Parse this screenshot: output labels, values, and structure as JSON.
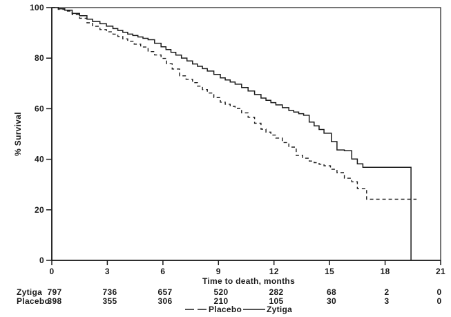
{
  "chart_data": {
    "type": "line",
    "subtype": "kaplan-meier-step",
    "title": "",
    "xlabel": "Time to death, months",
    "ylabel": "% Survival",
    "xlim": [
      0,
      21
    ],
    "ylim": [
      0,
      100
    ],
    "x_ticks": [
      "0",
      "3",
      "6",
      "9",
      "12",
      "15",
      "18",
      "21"
    ],
    "y_ticks": [
      "0",
      "20",
      "40",
      "60",
      "80",
      "100"
    ],
    "grid": false,
    "frame": "box",
    "legend_position": "bottom-center",
    "legend": [
      {
        "label": "Placebo",
        "style": "dashed"
      },
      {
        "label": "Zytiga",
        "style": "solid"
      }
    ],
    "series": [
      {
        "name": "Placebo",
        "style": "dashed",
        "color": "#1a1a1a",
        "points": [
          [
            0,
            100
          ],
          [
            0.7,
            98.6
          ],
          [
            1.1,
            97.2
          ],
          [
            1.5,
            95.8
          ],
          [
            1.9,
            94.0
          ],
          [
            2.2,
            92.6
          ],
          [
            2.6,
            91.3
          ],
          [
            3.3,
            89.5
          ],
          [
            4.1,
            86.7
          ],
          [
            4.8,
            84.4
          ],
          [
            5.2,
            82.6
          ],
          [
            5.9,
            79.9
          ],
          [
            6.5,
            75.7
          ],
          [
            6.9,
            73.0
          ],
          [
            7.6,
            70.3
          ],
          [
            8.4,
            66.2
          ],
          [
            9.1,
            62.6
          ],
          [
            9.9,
            60.1
          ],
          [
            10.6,
            56.6
          ],
          [
            11.3,
            51.9
          ],
          [
            12.1,
            48.4
          ],
          [
            12.8,
            44.8
          ],
          [
            13.2,
            41.5
          ],
          [
            13.9,
            39.3
          ],
          [
            14.7,
            37.4
          ],
          [
            15.4,
            34.7
          ],
          [
            15.8,
            32.5
          ],
          [
            16.2,
            31.1
          ],
          [
            16.5,
            28.4
          ],
          [
            17.0,
            24.2
          ],
          [
            19.7,
            24.2
          ]
        ]
      },
      {
        "name": "Zytiga",
        "style": "solid",
        "color": "#1a1a1a",
        "points": [
          [
            0,
            100
          ],
          [
            0.7,
            99.0
          ],
          [
            1.1,
            97.7
          ],
          [
            1.5,
            96.8
          ],
          [
            1.9,
            95.4
          ],
          [
            2.2,
            94.5
          ],
          [
            2.6,
            93.6
          ],
          [
            3.3,
            91.7
          ],
          [
            4.1,
            89.5
          ],
          [
            5.2,
            87.3
          ],
          [
            5.9,
            84.5
          ],
          [
            6.7,
            81.2
          ],
          [
            7.6,
            77.7
          ],
          [
            8.4,
            74.9
          ],
          [
            9.1,
            72.2
          ],
          [
            9.9,
            69.7
          ],
          [
            10.6,
            67.0
          ],
          [
            11.3,
            64.2
          ],
          [
            12.1,
            61.5
          ],
          [
            12.8,
            59.3
          ],
          [
            13.6,
            57.4
          ],
          [
            13.9,
            54.7
          ],
          [
            14.7,
            50.3
          ],
          [
            15.1,
            47.0
          ],
          [
            15.4,
            43.7
          ],
          [
            15.8,
            43.4
          ],
          [
            16.2,
            40.1
          ],
          [
            16.5,
            38.2
          ],
          [
            16.8,
            36.8
          ],
          [
            19.4,
            36.8
          ],
          [
            19.4,
            0
          ]
        ]
      }
    ]
  },
  "risk_table": {
    "rows": [
      {
        "label": "Zytiga",
        "counts": [
          "797",
          "736",
          "657",
          "520",
          "282",
          "68",
          "2",
          "0"
        ]
      },
      {
        "label": "Placebo",
        "counts": [
          "398",
          "355",
          "306",
          "210",
          "105",
          "30",
          "3",
          "0"
        ]
      }
    ]
  },
  "colors": {
    "line": "#1a1a1a",
    "text": "#1a1a1a",
    "background": "#ffffff"
  }
}
